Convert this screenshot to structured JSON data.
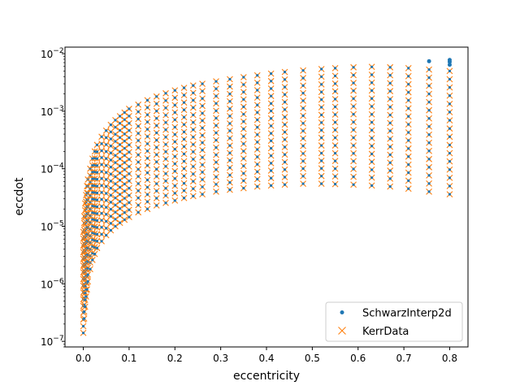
{
  "chart_data": {
    "type": "scatter",
    "xlabel": "eccentricity",
    "ylabel": "eccdot",
    "yscale": "log",
    "xlim": [
      -0.04,
      0.84
    ],
    "ylim": [
      8e-08,
      0.013
    ],
    "x_ticks": [
      {
        "value": 0.0,
        "label": "0.0"
      },
      {
        "value": 0.1,
        "label": "0.1"
      },
      {
        "value": 0.2,
        "label": "0.2"
      },
      {
        "value": 0.3,
        "label": "0.3"
      },
      {
        "value": 0.4,
        "label": "0.4"
      },
      {
        "value": 0.5,
        "label": "0.5"
      },
      {
        "value": 0.6,
        "label": "0.6"
      },
      {
        "value": 0.7,
        "label": "0.7"
      },
      {
        "value": 0.8,
        "label": "0.8"
      }
    ],
    "y_ticks": [
      {
        "value": 1e-07,
        "mantissa": "10",
        "exp": "−7"
      },
      {
        "value": 1e-06,
        "mantissa": "10",
        "exp": "−6"
      },
      {
        "value": 1e-05,
        "mantissa": "10",
        "exp": "−5"
      },
      {
        "value": 0.0001,
        "mantissa": "10",
        "exp": "−4"
      },
      {
        "value": 0.001,
        "mantissa": "10",
        "exp": "−3"
      },
      {
        "value": 0.01,
        "mantissa": "10",
        "exp": "−2"
      }
    ],
    "grid": false,
    "legend_position": "lower-right",
    "series": [
      {
        "name": "SchwarzInterp2d",
        "marker": "point",
        "color": "#1f77b4"
      },
      {
        "name": "KerrData",
        "marker": "x",
        "color": "#ff7f0e"
      }
    ],
    "columns": [
      {
        "x": 0.0,
        "y_min": 1.4e-07,
        "y_max": 8e-06
      },
      {
        "x": 0.002,
        "y_min": 2.5e-07,
        "y_max": 1.5e-05
      },
      {
        "x": 0.004,
        "y_min": 4e-07,
        "y_max": 2.5e-05
      },
      {
        "x": 0.006,
        "y_min": 6e-07,
        "y_max": 3.5e-05
      },
      {
        "x": 0.008,
        "y_min": 8e-07,
        "y_max": 5e-05
      },
      {
        "x": 0.01,
        "y_min": 1.1e-06,
        "y_max": 6.5e-05
      },
      {
        "x": 0.015,
        "y_min": 1.8e-06,
        "y_max": 0.0001
      },
      {
        "x": 0.02,
        "y_min": 2.6e-06,
        "y_max": 0.00015
      },
      {
        "x": 0.025,
        "y_min": 3.3e-06,
        "y_max": 0.0002
      },
      {
        "x": 0.03,
        "y_min": 4.2e-06,
        "y_max": 0.00026
      },
      {
        "x": 0.04,
        "y_min": 5.5e-06,
        "y_max": 0.00036
      },
      {
        "x": 0.05,
        "y_min": 7e-06,
        "y_max": 0.00046
      },
      {
        "x": 0.06,
        "y_min": 8.5e-06,
        "y_max": 0.00058
      },
      {
        "x": 0.07,
        "y_min": 1e-05,
        "y_max": 0.0007
      },
      {
        "x": 0.08,
        "y_min": 1.15e-05,
        "y_max": 0.00082
      },
      {
        "x": 0.09,
        "y_min": 1.3e-05,
        "y_max": 0.00095
      },
      {
        "x": 0.1,
        "y_min": 1.45e-05,
        "y_max": 0.0011
      },
      {
        "x": 0.12,
        "y_min": 1.75e-05,
        "y_max": 0.0013
      },
      {
        "x": 0.14,
        "y_min": 2e-05,
        "y_max": 0.00155
      },
      {
        "x": 0.16,
        "y_min": 2.3e-05,
        "y_max": 0.0018
      },
      {
        "x": 0.18,
        "y_min": 2.55e-05,
        "y_max": 0.00205
      },
      {
        "x": 0.2,
        "y_min": 2.8e-05,
        "y_max": 0.0023
      },
      {
        "x": 0.22,
        "y_min": 3.1e-05,
        "y_max": 0.00255
      },
      {
        "x": 0.24,
        "y_min": 3.35e-05,
        "y_max": 0.0028
      },
      {
        "x": 0.26,
        "y_min": 3.6e-05,
        "y_max": 0.003
      },
      {
        "x": 0.29,
        "y_min": 4e-05,
        "y_max": 0.0033
      },
      {
        "x": 0.32,
        "y_min": 4.3e-05,
        "y_max": 0.0036
      },
      {
        "x": 0.35,
        "y_min": 4.6e-05,
        "y_max": 0.0039
      },
      {
        "x": 0.38,
        "y_min": 4.9e-05,
        "y_max": 0.0042
      },
      {
        "x": 0.41,
        "y_min": 5.1e-05,
        "y_max": 0.0045
      },
      {
        "x": 0.44,
        "y_min": 5.3e-05,
        "y_max": 0.0048
      },
      {
        "x": 0.48,
        "y_min": 5.5e-05,
        "y_max": 0.0051
      },
      {
        "x": 0.52,
        "y_min": 5.5e-05,
        "y_max": 0.0054
      },
      {
        "x": 0.55,
        "y_min": 5.4e-05,
        "y_max": 0.0056
      },
      {
        "x": 0.59,
        "y_min": 5.3e-05,
        "y_max": 0.0058
      },
      {
        "x": 0.63,
        "y_min": 5.1e-05,
        "y_max": 0.0059
      },
      {
        "x": 0.67,
        "y_min": 4.9e-05,
        "y_max": 0.0058
      },
      {
        "x": 0.71,
        "y_min": 4.5e-05,
        "y_max": 0.0056
      },
      {
        "x": 0.755,
        "y_min": 4e-05,
        "y_max": 0.0053
      },
      {
        "x": 0.8,
        "y_min": 3.6e-05,
        "y_max": 0.005
      }
    ],
    "schwarz_only_points": [
      {
        "x": 0.755,
        "y": 0.0074
      },
      {
        "x": 0.8,
        "y": 0.0078
      },
      {
        "x": 0.8,
        "y": 0.0072
      },
      {
        "x": 0.8,
        "y": 0.0064
      }
    ]
  }
}
